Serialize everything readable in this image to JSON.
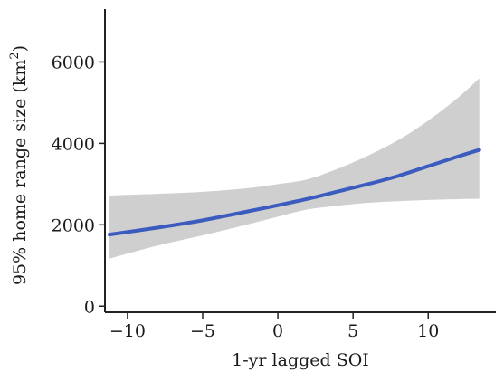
{
  "chart_data": {
    "type": "line",
    "xlabel": "1-yr lagged SOI",
    "ylabel": "95% home range size (km",
    "ylabel_superscript": "2",
    "ylabel_suffix": ")",
    "xlim": [
      -11.5,
      14.5
    ],
    "ylim": [
      -150,
      7300
    ],
    "x_ticks": [
      -10,
      -5,
      0,
      5,
      10
    ],
    "x_tick_labels": [
      "−10",
      "−5",
      "0",
      "5",
      "10"
    ],
    "y_ticks": [
      0,
      2000,
      4000,
      6000
    ],
    "y_tick_labels": [
      "0",
      "2000",
      "4000",
      "6000"
    ],
    "grid": false,
    "series": [
      {
        "x": [
          -11.2,
          -8,
          -5,
          -2,
          0,
          2,
          4,
          6,
          8,
          10,
          12,
          13.4
        ],
        "y": [
          1760,
          1930,
          2110,
          2330,
          2480,
          2640,
          2820,
          3000,
          3200,
          3440,
          3680,
          3840
        ],
        "lower": [
          1170,
          1490,
          1740,
          2010,
          2200,
          2380,
          2470,
          2540,
          2580,
          2610,
          2630,
          2640
        ],
        "upper": [
          2720,
          2760,
          2810,
          2900,
          3000,
          3120,
          3380,
          3700,
          4080,
          4560,
          5130,
          5600
        ]
      }
    ],
    "colors": {
      "line": "#3b5bbf",
      "band": "#cfcfcf",
      "axis": "#222222"
    }
  }
}
